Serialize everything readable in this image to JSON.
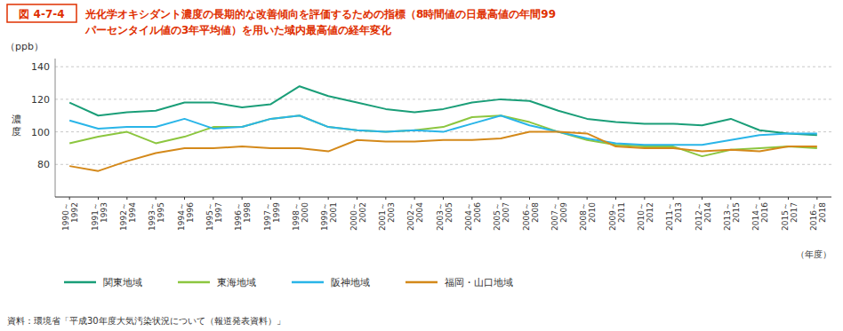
{
  "chart_data": {
    "type": "line",
    "title": "図 4-7-4",
    "subtitle": [
      "光化学オキシダント濃度の長期的な改善傾向を評価するための指標（8時間値の日最高値の年間99",
      "パーセンタイル値の3年平均値）を用いた域内最高値の経年変化"
    ],
    "ylabel": "濃度",
    "xlabel": "（年度）",
    "annotations": [
      "（ppb）",
      "資料：環境省「平成30年度大気汚染状況について（報道発表資料）」"
    ],
    "color": "#e03000",
    "categories": [
      "1990～\n1992",
      "1991～\n1993",
      "1992～\n1994",
      "1993～\n1995",
      "1994～\n1996",
      "1995～\n1997",
      "1996～\n1998",
      "1997～\n1999",
      "1998～\n2000",
      "1999～\n2001",
      "2000～\n2002",
      "2001～\n2003",
      "2002～\n2004",
      "2003～\n2005",
      "2004～\n2006",
      "2005～\n2007",
      "2006～\n2008",
      "2007～\n2009",
      "2008～\n2010",
      "2009～\n2011",
      "2010～\n2012",
      "2011～\n2013",
      "2012～\n2014",
      "2013～\n2015",
      "2014～\n2016",
      "2015～\n2017",
      "2016～\n2018"
    ],
    "series": [
      {
        "name": "関東地域",
        "color": "#1a9e78",
        "values": [
          118,
          110,
          112,
          113,
          118,
          118,
          115,
          117,
          128,
          122,
          118,
          114,
          112,
          114,
          118,
          120,
          119,
          113,
          108,
          106,
          105,
          105,
          104,
          108,
          101,
          99,
          98
        ]
      },
      {
        "name": "東海地域",
        "color": "#8cc63f",
        "values": [
          93,
          97,
          100,
          93,
          97,
          103,
          103,
          108,
          110,
          103,
          101,
          100,
          101,
          103,
          109,
          110,
          106,
          100,
          95,
          92,
          91,
          91,
          85,
          89,
          90,
          91,
          90
        ]
      },
      {
        "name": "阪神地域",
        "color": "#29b5e8",
        "values": [
          107,
          102,
          103,
          103,
          108,
          102,
          103,
          108,
          110,
          103,
          101,
          100,
          101,
          100,
          105,
          110,
          104,
          100,
          96,
          93,
          92,
          92,
          92,
          95,
          98,
          99,
          99
        ]
      },
      {
        "name": "福岡・山口地域",
        "color": "#d4891a",
        "values": [
          79,
          76,
          82,
          87,
          90,
          90,
          91,
          90,
          90,
          88,
          95,
          94,
          94,
          95,
          95,
          96,
          100,
          100,
          99,
          91,
          90,
          90,
          88,
          89,
          88,
          91,
          91
        ]
      }
    ],
    "ylim": [
      60,
      145
    ],
    "yticks": [
      80,
      100,
      120,
      140
    ],
    "grid": true,
    "legend": "bottom"
  }
}
